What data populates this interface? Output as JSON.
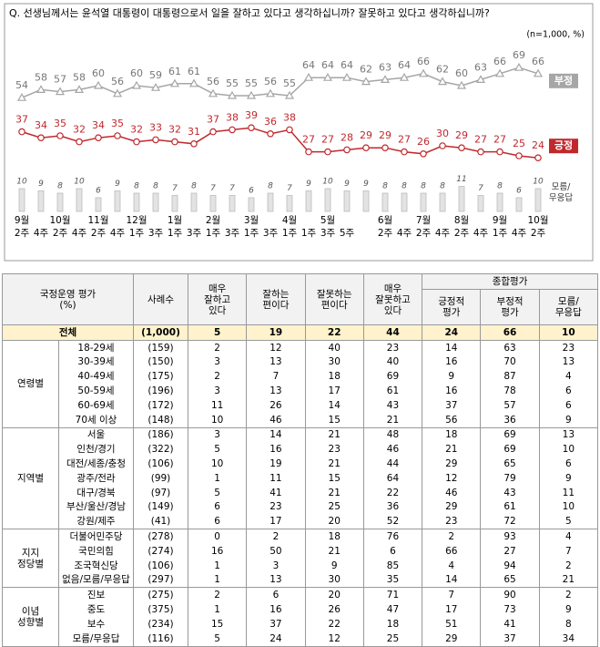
{
  "chart_data": {
    "type": "line",
    "title": "Q. 선생님께서는 윤석열 대통령이 대통령으로서 일을 잘하고 있다고 생각하십니까? 잘못하고 있다고 생각하십니까?",
    "note": "(n=1,000, %)",
    "months": [
      "9월",
      null,
      "10월",
      null,
      "11월",
      null,
      "12월",
      null,
      "1월",
      null,
      "2월",
      null,
      "3월",
      null,
      "4월",
      null,
      "5월",
      null,
      null,
      "6월",
      null,
      "7월",
      null,
      "8월",
      null,
      "9월",
      null,
      "10월"
    ],
    "categories": [
      "2주",
      "4주",
      "2주",
      "4주",
      "2주",
      "4주",
      "1주",
      "3주",
      "1주",
      "3주",
      "1주",
      "3주",
      "1주",
      "3주",
      "1주",
      "1주",
      "3주",
      "5주",
      null,
      "2주",
      "4주",
      "2주",
      "4주",
      "2주",
      "4주",
      "1주",
      "4주",
      "2주"
    ],
    "ylim": [
      20,
      80
    ],
    "y2lim": [
      0,
      40
    ],
    "series": [
      {
        "name": "부정",
        "color": "#a6a6a6",
        "marker": "triangle",
        "values": [
          54,
          58,
          57,
          58,
          60,
          56,
          60,
          59,
          61,
          61,
          56,
          55,
          55,
          56,
          55,
          64,
          64,
          64,
          62,
          63,
          64,
          66,
          62,
          60,
          63,
          66,
          69,
          66
        ]
      },
      {
        "name": "긍정",
        "color": "#c0282d",
        "marker": "circle",
        "values": [
          37,
          34,
          35,
          32,
          34,
          35,
          32,
          33,
          32,
          31,
          37,
          38,
          39,
          36,
          38,
          27,
          27,
          28,
          29,
          29,
          27,
          26,
          30,
          29,
          27,
          27,
          25,
          24
        ]
      },
      {
        "name": "모름/ 무응답",
        "color": "#e3e3e3",
        "type": "bar",
        "axis": "y2",
        "values": [
          10,
          9,
          8,
          10,
          6,
          9,
          8,
          8,
          7,
          8,
          7,
          7,
          6,
          8,
          7,
          9,
          10,
          9,
          9,
          8,
          8,
          8,
          8,
          11,
          7,
          8,
          6,
          10
        ]
      }
    ]
  },
  "table": {
    "header": {
      "label": [
        "국정운영 평가",
        "(%)"
      ],
      "count": "사례수",
      "columns": [
        [
          "매우",
          "잘하고",
          "있다"
        ],
        [
          "잘하는",
          "편이다"
        ],
        [
          "잘못하는",
          "편이다"
        ],
        [
          "매우",
          "잘못하고",
          "있다"
        ]
      ],
      "group": "종합평가",
      "summary": [
        [
          "긍정적",
          "평가"
        ],
        [
          "부정적",
          "평가"
        ],
        [
          "모름/",
          "무응답"
        ]
      ]
    },
    "total": {
      "label": "전체",
      "count": "(1,000)",
      "values": [
        5,
        19,
        22,
        44,
        24,
        66,
        10
      ]
    },
    "groups": [
      {
        "label": [
          "연령별"
        ],
        "rows": [
          {
            "label": "18-29세",
            "count": "(159)",
            "values": [
              2,
              12,
              40,
              23,
              14,
              63,
              23
            ]
          },
          {
            "label": "30-39세",
            "count": "(150)",
            "values": [
              3,
              13,
              30,
              40,
              16,
              70,
              13
            ]
          },
          {
            "label": "40-49세",
            "count": "(175)",
            "values": [
              2,
              7,
              18,
              69,
              9,
              87,
              4
            ]
          },
          {
            "label": "50-59세",
            "count": "(196)",
            "values": [
              3,
              13,
              17,
              61,
              16,
              78,
              6
            ]
          },
          {
            "label": "60-69세",
            "count": "(172)",
            "values": [
              11,
              26,
              14,
              43,
              37,
              57,
              6
            ]
          },
          {
            "label": "70세 이상",
            "count": "(148)",
            "values": [
              10,
              46,
              15,
              21,
              56,
              36,
              9
            ]
          }
        ]
      },
      {
        "label": [
          "지역별"
        ],
        "rows": [
          {
            "label": "서울",
            "count": "(186)",
            "values": [
              3,
              14,
              21,
              48,
              18,
              69,
              13
            ]
          },
          {
            "label": "인천/경기",
            "count": "(322)",
            "values": [
              5,
              16,
              23,
              46,
              21,
              69,
              10
            ]
          },
          {
            "label": "대전/세종/충청",
            "count": "(106)",
            "values": [
              10,
              19,
              21,
              44,
              29,
              65,
              6
            ]
          },
          {
            "label": "광주/전라",
            "count": "(99)",
            "values": [
              1,
              11,
              15,
              64,
              12,
              79,
              9
            ]
          },
          {
            "label": "대구/경북",
            "count": "(97)",
            "values": [
              5,
              41,
              21,
              22,
              46,
              43,
              11
            ]
          },
          {
            "label": "부산/울산/경남",
            "count": "(149)",
            "values": [
              6,
              23,
              25,
              36,
              29,
              61,
              10
            ]
          },
          {
            "label": "강원/제주",
            "count": "(41)",
            "values": [
              6,
              17,
              20,
              52,
              23,
              72,
              5
            ]
          }
        ]
      },
      {
        "label": [
          "지지",
          "정당별"
        ],
        "rows": [
          {
            "label": "더불어민주당",
            "count": "(278)",
            "values": [
              0,
              2,
              18,
              76,
              2,
              93,
              4
            ]
          },
          {
            "label": "국민의힘",
            "count": "(274)",
            "values": [
              16,
              50,
              21,
              6,
              66,
              27,
              7
            ]
          },
          {
            "label": "조국혁신당",
            "count": "(106)",
            "values": [
              1,
              3,
              9,
              85,
              4,
              94,
              2
            ]
          },
          {
            "label": "없음/모름/무응답",
            "count": "(297)",
            "values": [
              1,
              13,
              30,
              35,
              14,
              65,
              21
            ]
          }
        ]
      },
      {
        "label": [
          "이념",
          "성향별"
        ],
        "rows": [
          {
            "label": "진보",
            "count": "(275)",
            "values": [
              2,
              6,
              20,
              71,
              7,
              90,
              2
            ]
          },
          {
            "label": "중도",
            "count": "(375)",
            "values": [
              1,
              16,
              26,
              47,
              17,
              73,
              9
            ]
          },
          {
            "label": "보수",
            "count": "(234)",
            "values": [
              15,
              37,
              22,
              18,
              51,
              41,
              8
            ]
          },
          {
            "label": "모름/무응답",
            "count": "(116)",
            "values": [
              5,
              24,
              12,
              25,
              29,
              37,
              34
            ]
          }
        ]
      }
    ]
  }
}
